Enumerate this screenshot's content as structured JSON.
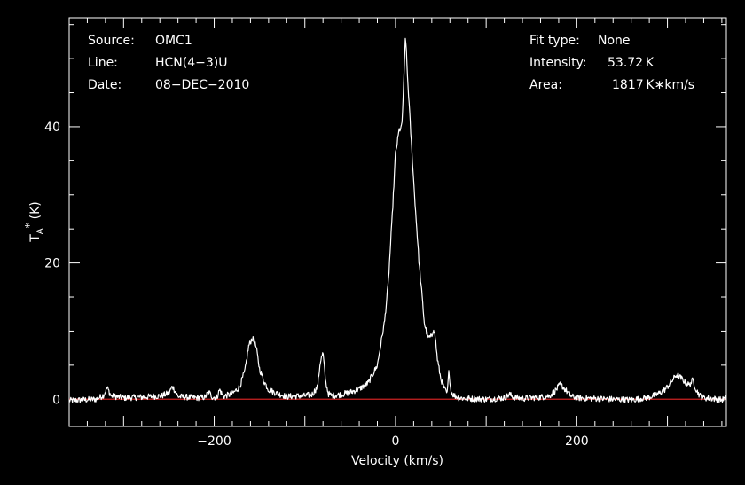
{
  "chart_data": {
    "type": "line",
    "title": "",
    "xlabel": "Velocity (km/s)",
    "ylabel": "T",
    "ylabel_sub": "A",
    "ylabel_sup": "*",
    "ylabel_unit": "(K)",
    "xlim": [
      -360,
      365
    ],
    "ylim": [
      -4,
      56
    ],
    "xticks": [
      {
        "value": -200,
        "label": "−200"
      },
      {
        "value": 0,
        "label": "0"
      },
      {
        "value": 200,
        "label": "200"
      }
    ],
    "yticks": [
      {
        "value": 0,
        "label": "0"
      },
      {
        "value": 20,
        "label": "20"
      },
      {
        "value": 40,
        "label": "40"
      }
    ],
    "grid": false,
    "baseline": 0,
    "colors": {
      "background": "#000000",
      "frame": "#ffffff",
      "spectrum": "#ffffff",
      "baseline": "#cc2222"
    },
    "series": [
      {
        "x": [
          -360,
          -330,
          -322,
          -318,
          -314,
          -300,
          -280,
          -258,
          -250,
          -246,
          -240,
          -220,
          -210,
          -206,
          -202,
          -197,
          -194,
          -190,
          -180,
          -172,
          -166,
          -162,
          -158,
          -154,
          -150,
          -145,
          -140,
          -130,
          -120,
          -100,
          -92,
          -86,
          -83,
          -80,
          -77,
          -74,
          -70,
          -60,
          -50,
          -40,
          -30,
          -20,
          -12,
          -8,
          -4,
          0,
          4,
          7,
          9,
          11,
          13,
          16,
          20,
          26,
          32,
          36,
          40,
          42,
          44,
          46,
          50,
          54,
          57,
          59,
          61,
          64,
          70,
          80,
          100,
          120,
          126,
          130,
          140,
          160,
          170,
          176,
          182,
          188,
          194,
          200,
          220,
          240,
          260,
          280,
          290,
          298,
          304,
          310,
          316,
          320,
          324,
          328,
          332,
          336,
          340,
          350,
          360,
          365
        ],
        "y": [
          -0.2,
          0.0,
          0.6,
          1.7,
          0.5,
          0.2,
          0.3,
          0.5,
          0.9,
          1.9,
          0.4,
          0.2,
          0.3,
          1.1,
          0.3,
          0.3,
          1.4,
          0.4,
          0.8,
          1.8,
          4.2,
          7.8,
          9.0,
          7.8,
          4.5,
          2.6,
          1.4,
          0.8,
          0.4,
          0.5,
          0.7,
          1.8,
          5.5,
          6.8,
          2.5,
          0.8,
          0.5,
          0.7,
          1.0,
          1.5,
          2.4,
          5.0,
          11.5,
          17.0,
          26.0,
          36.0,
          39.5,
          40.0,
          46.0,
          53.7,
          48.0,
          41.0,
          32.0,
          20.0,
          11.0,
          9.0,
          9.2,
          10.5,
          9.0,
          6.0,
          3.0,
          1.5,
          0.8,
          4.2,
          1.2,
          0.6,
          0.2,
          0.1,
          0.0,
          0.2,
          0.7,
          0.3,
          0.1,
          0.3,
          0.5,
          1.2,
          2.2,
          1.3,
          0.4,
          0.2,
          0.1,
          0.0,
          -0.1,
          0.3,
          0.8,
          1.5,
          2.5,
          3.6,
          3.0,
          2.4,
          2.1,
          2.8,
          1.3,
          0.5,
          0.2,
          0.1,
          -0.1,
          0.2
        ]
      }
    ]
  },
  "info_left": [
    {
      "key": "Source:",
      "value": "OMC1"
    },
    {
      "key": "Line:",
      "value": "HCN(4−3)U"
    },
    {
      "key": "Date:",
      "value": "08−DEC−2010"
    }
  ],
  "info_right": [
    {
      "key": "Fit type:",
      "value": "None"
    },
    {
      "key": "Intensity:",
      "value": "53.72 K"
    },
    {
      "key": "Area:",
      "value": "1817 K∗km/s"
    }
  ]
}
